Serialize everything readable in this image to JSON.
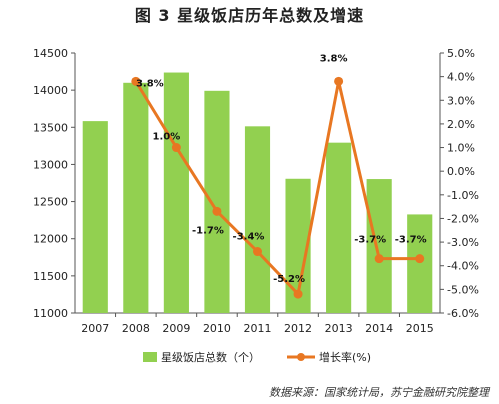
{
  "title": "图 3  星级饭店历年总数及增速",
  "source": "数据来源：国家统计局，苏宁金融研究院整理",
  "chart_data": {
    "type": "bar+line",
    "categories": [
      "2007",
      "2008",
      "2009",
      "2010",
      "2011",
      "2012",
      "2013",
      "2014",
      "2015"
    ],
    "series": [
      {
        "name": "星级饭店总数（个）",
        "type": "bar",
        "axis": "left",
        "color": "#92d050",
        "values": [
          13583,
          14099,
          14237,
          13991,
          13513,
          12807,
          13293,
          12803,
          12327
        ]
      },
      {
        "name": "增长率(%)",
        "type": "line",
        "axis": "right",
        "color": "#e87722",
        "values": [
          null,
          3.8,
          1.0,
          -1.7,
          -3.4,
          -5.2,
          3.8,
          -3.7,
          -3.7
        ],
        "labels": [
          "",
          "3.8%",
          "1.0%",
          "-1.7%",
          "-3.4%",
          "-5.2%",
          "3.8%",
          "-3.7%",
          "-3.7%"
        ]
      }
    ],
    "y_left": {
      "min": 11000,
      "max": 14500,
      "step": 500,
      "ticks": [
        "11000",
        "11500",
        "12000",
        "12500",
        "13000",
        "13500",
        "14000",
        "14500"
      ]
    },
    "y_right": {
      "min": -6.0,
      "max": 5.0,
      "step": 1.0,
      "ticks": [
        "-6.0%",
        "-5.0%",
        "-4.0%",
        "-3.0%",
        "-2.0%",
        "-1.0%",
        "0.0%",
        "1.0%",
        "2.0%",
        "3.0%",
        "4.0%",
        "5.0%"
      ]
    },
    "grid": false,
    "legend_position": "bottom"
  }
}
